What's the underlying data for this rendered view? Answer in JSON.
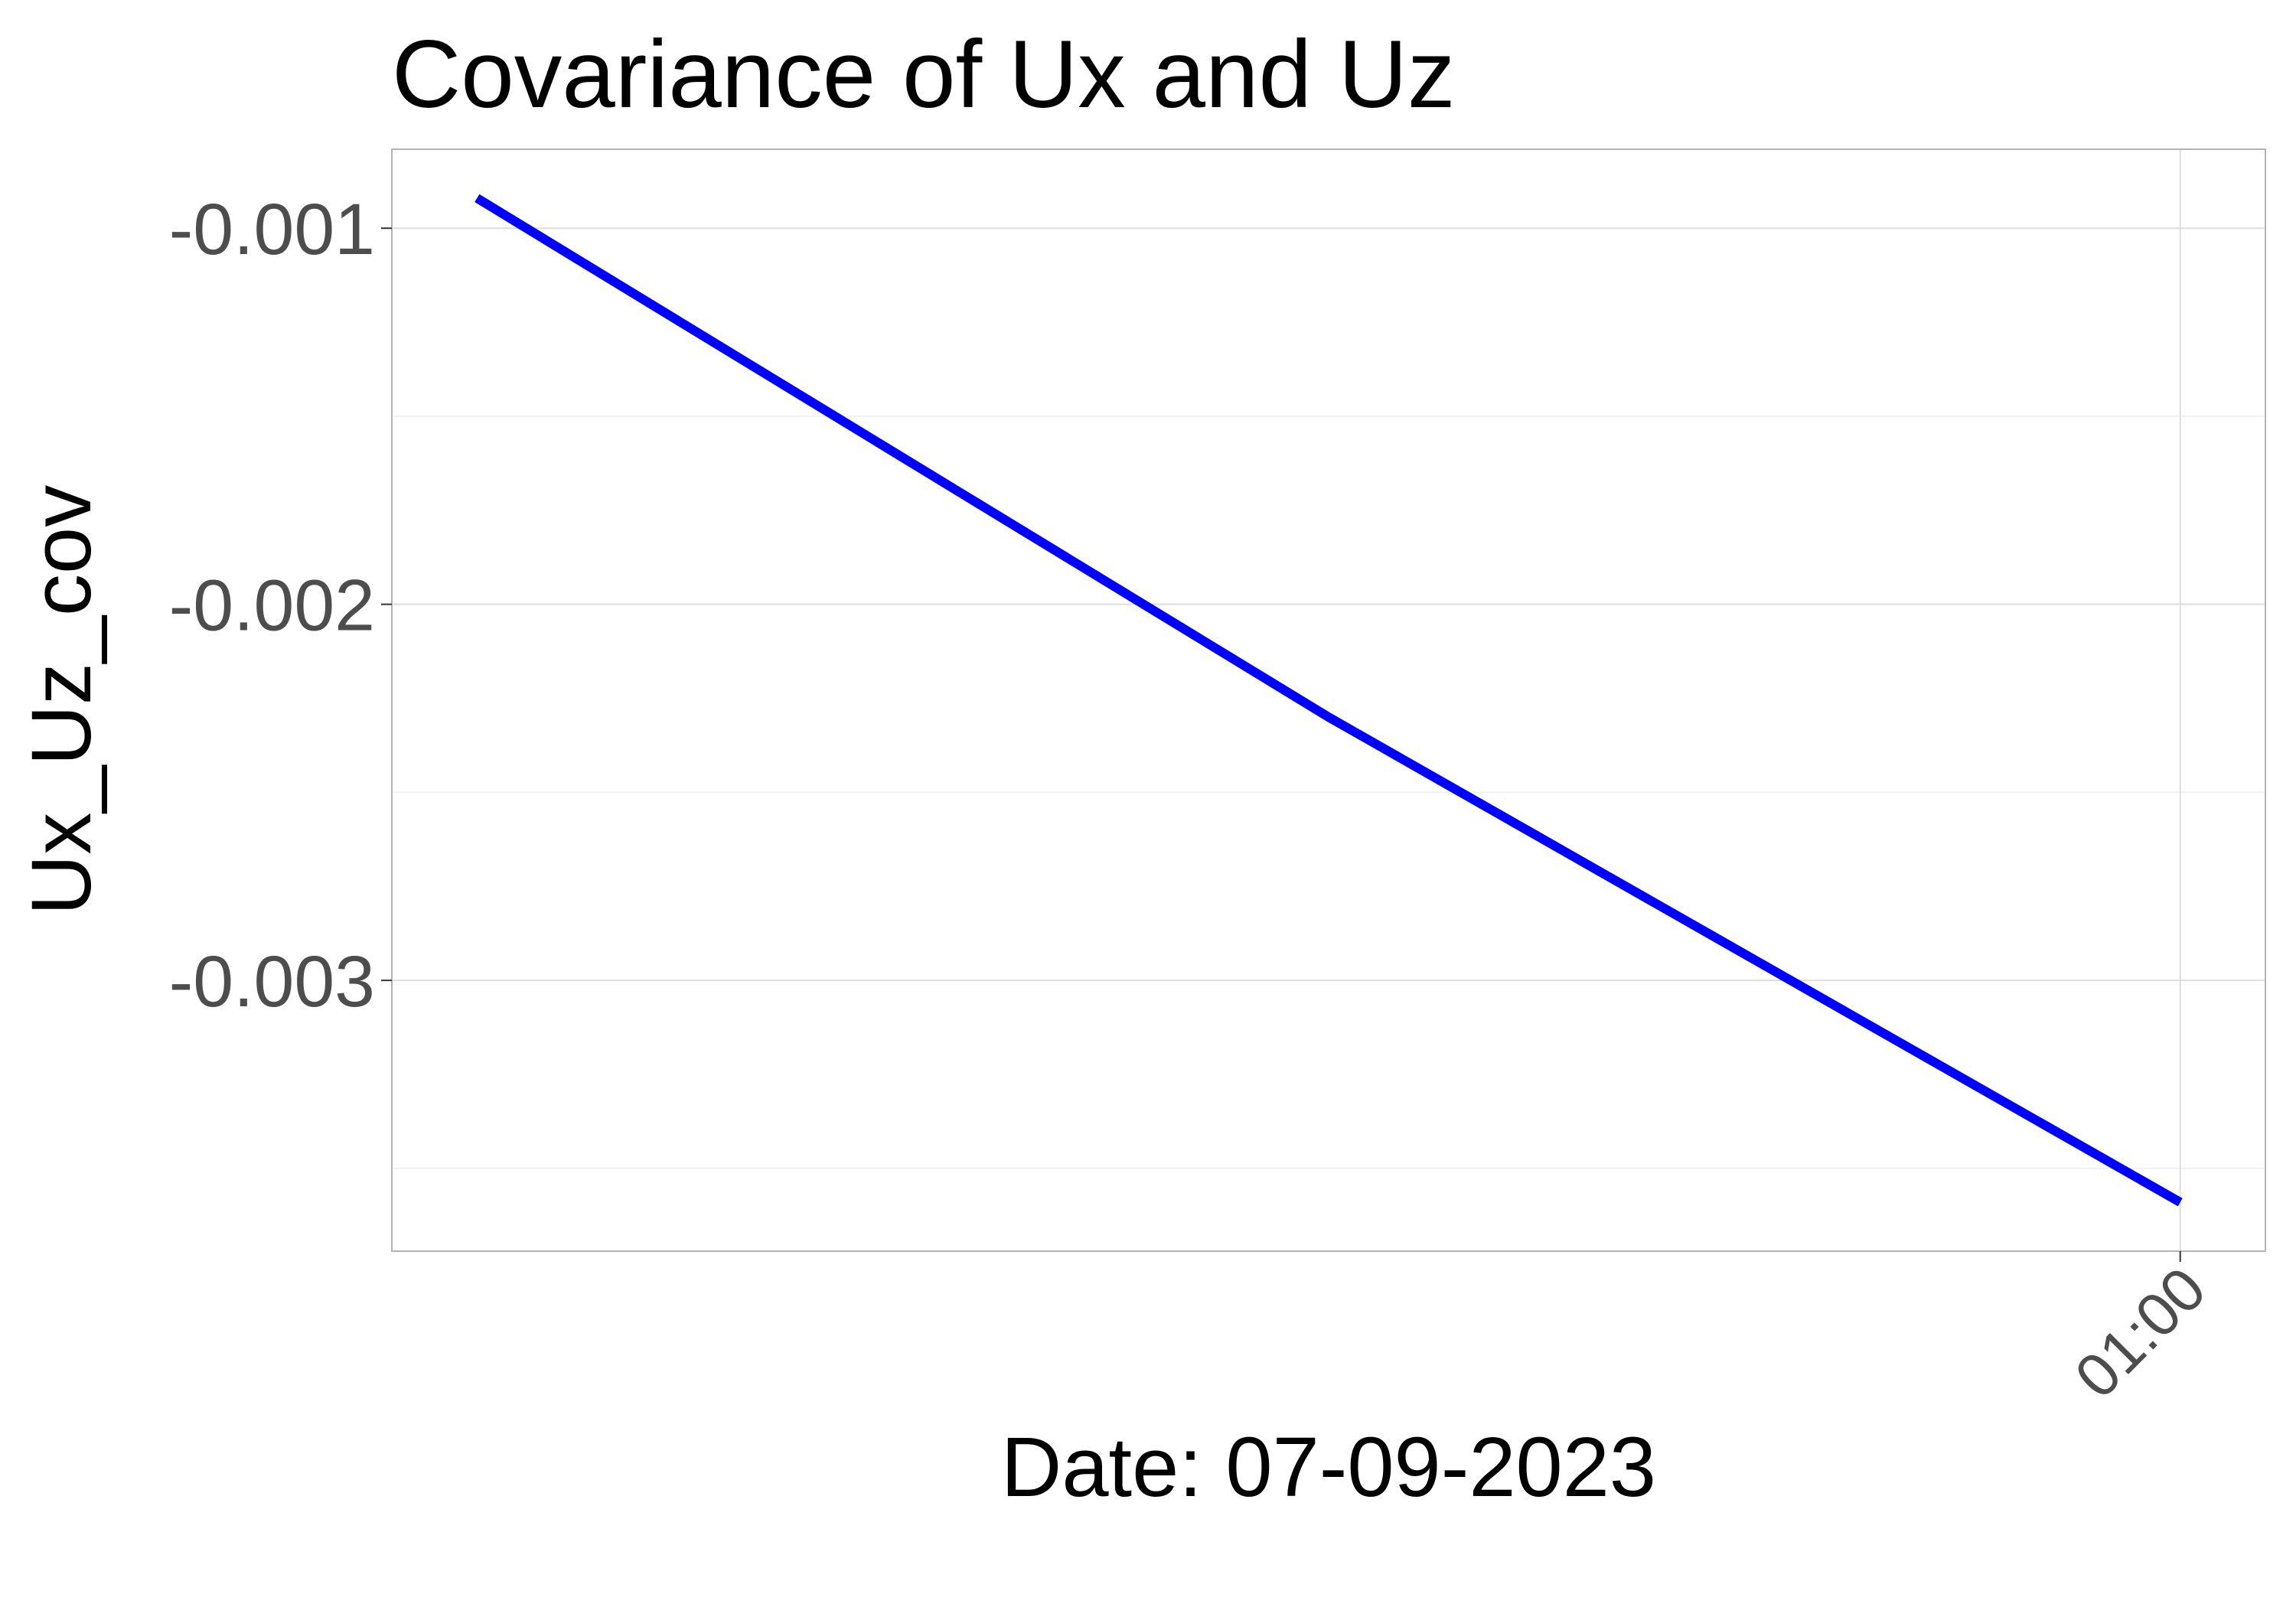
{
  "chart_data": {
    "type": "line",
    "title": "Covariance of Ux and Uz",
    "xlabel": "Date: 07-09-2023",
    "ylabel": "Ux_Uz_cov",
    "x_ticks": [
      {
        "value": "01:00",
        "label": "01:00"
      }
    ],
    "y_ticks": [
      {
        "value": -0.001,
        "label": "-0.001"
      },
      {
        "value": -0.002,
        "label": "-0.002"
      },
      {
        "value": -0.003,
        "label": "-0.003"
      }
    ],
    "y_minor_ticks": [
      -0.0015,
      -0.0025,
      -0.0035
    ],
    "x_range": [
      "00:30",
      "01:00"
    ],
    "ylim": [
      -0.00372,
      -0.00079
    ],
    "grid": true,
    "series": [
      {
        "x": [
          "00:30",
          "00:45",
          "01:00"
        ],
        "values": [
          -0.00092,
          -0.0023,
          -0.00359
        ],
        "color": "#0000ff"
      }
    ]
  }
}
